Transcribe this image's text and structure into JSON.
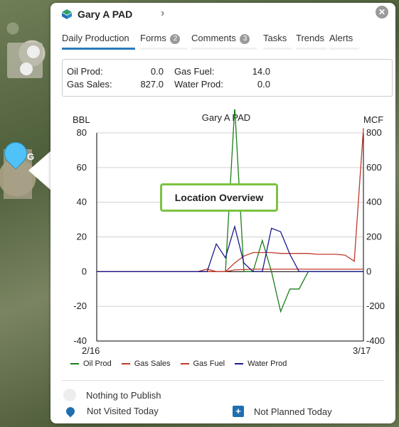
{
  "map": {
    "pin_label": "G"
  },
  "header": {
    "title": "Gary A PAD"
  },
  "tabs": [
    {
      "label": "Daily Production"
    },
    {
      "label": "Forms",
      "badge": "2"
    },
    {
      "label": "Comments",
      "badge": "3"
    },
    {
      "label": "Tasks"
    },
    {
      "label": "Trends"
    },
    {
      "label": "Alerts"
    }
  ],
  "summary": {
    "oil_prod": {
      "label": "Oil Prod:",
      "value": "0.0"
    },
    "gas_sales": {
      "label": "Gas Sales:",
      "value": "827.0"
    },
    "gas_fuel": {
      "label": "Gas Fuel:",
      "value": "14.0"
    },
    "water_prod": {
      "label": "Water Prod:",
      "value": "0.0"
    }
  },
  "chart_data": {
    "type": "line",
    "title": "Gary A PAD",
    "ylabel_left": "BBL",
    "ylabel_right": "MCF",
    "x_start_label": "2/16",
    "x_end_label": "3/17",
    "ylim_left": [
      -40,
      80
    ],
    "ylim_right": [
      -400,
      800
    ],
    "left_ticks": [
      80,
      60,
      40,
      20,
      0,
      -20,
      -40
    ],
    "right_ticks": [
      800,
      600,
      400,
      200,
      0,
      -200,
      -400
    ],
    "x": [
      "2/16",
      "2/17",
      "2/18",
      "2/19",
      "2/20",
      "2/21",
      "2/22",
      "2/23",
      "2/24",
      "2/25",
      "2/26",
      "2/27",
      "2/28",
      "3/1",
      "3/2",
      "3/3",
      "3/4",
      "3/5",
      "3/6",
      "3/7",
      "3/8",
      "3/9",
      "3/10",
      "3/11",
      "3/12",
      "3/13",
      "3/14",
      "3/15",
      "3/16",
      "3/17"
    ],
    "series": [
      {
        "name": "Oil Prod",
        "axis": "left",
        "color": "#1a7f1a",
        "values": [
          0,
          0,
          0,
          0,
          0,
          0,
          0,
          0,
          0,
          0,
          0,
          0,
          0,
          0,
          0,
          95,
          0,
          0,
          18,
          0,
          -23,
          -10,
          -10,
          0,
          0,
          0,
          0,
          0,
          0,
          0
        ]
      },
      {
        "name": "Gas Sales",
        "axis": "right",
        "color": "#c0392b",
        "values": [
          0,
          0,
          0,
          0,
          0,
          0,
          0,
          0,
          0,
          0,
          0,
          0,
          15,
          0,
          0,
          50,
          90,
          110,
          110,
          110,
          105,
          105,
          105,
          105,
          100,
          100,
          100,
          95,
          60,
          827
        ]
      },
      {
        "name": "Gas Fuel",
        "axis": "right",
        "color": "#c0392b",
        "values": [
          0,
          0,
          0,
          0,
          0,
          0,
          0,
          0,
          0,
          0,
          0,
          0,
          0,
          0,
          0,
          10,
          12,
          14,
          14,
          14,
          14,
          14,
          14,
          14,
          14,
          14,
          14,
          14,
          14,
          14
        ]
      },
      {
        "name": "Water Prod",
        "axis": "left",
        "color": "#1a1a8c",
        "values": [
          0,
          0,
          0,
          0,
          0,
          0,
          0,
          0,
          0,
          0,
          0,
          0,
          0,
          16,
          8,
          26,
          5,
          0,
          0,
          25,
          23,
          10,
          0,
          0,
          0,
          0,
          0,
          0,
          0,
          0
        ]
      }
    ]
  },
  "status": {
    "publish": "Nothing to Publish",
    "visited": "Not Visited Today",
    "planned": "Not Planned Today"
  },
  "overlay": {
    "label": "Location Overview"
  }
}
